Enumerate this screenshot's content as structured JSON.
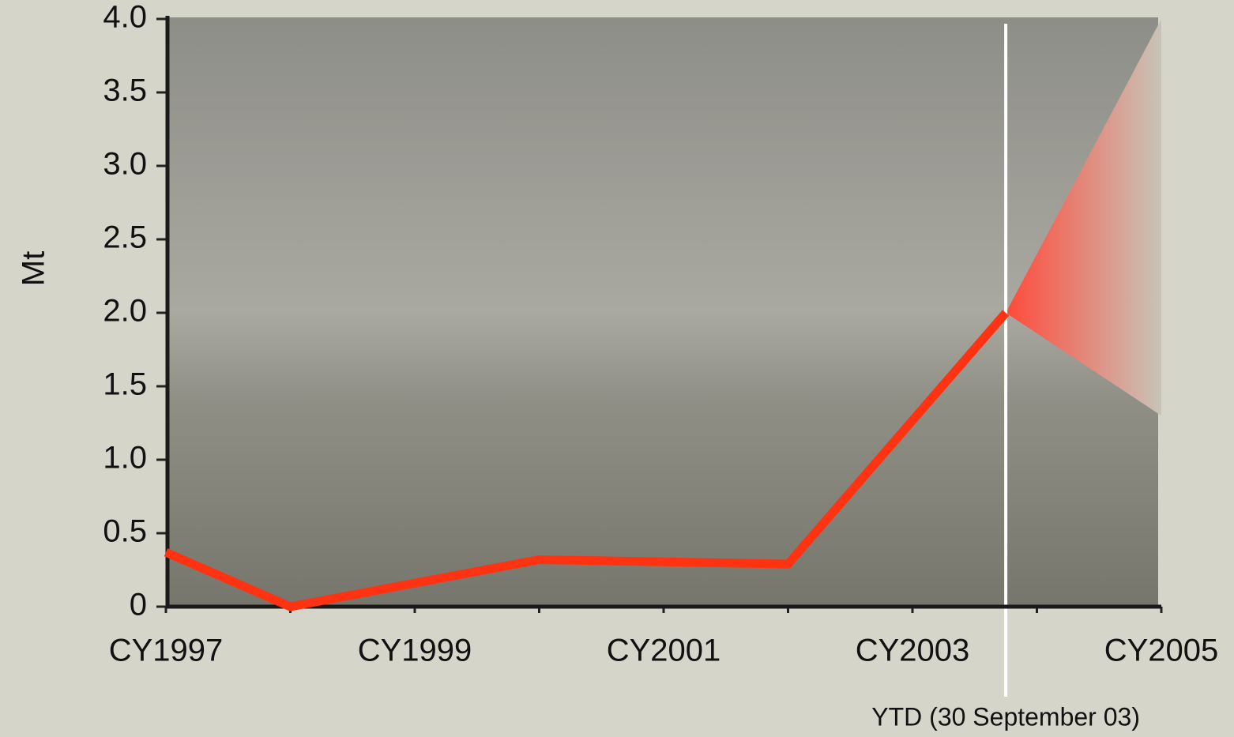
{
  "chart_data": {
    "type": "line",
    "y_label": "Mt",
    "annotation": "YTD (30 September 03)",
    "annotation_x": 2003.75,
    "x": [
      1997,
      1998,
      2000,
      2002,
      2003.75
    ],
    "series": [
      {
        "name": null,
        "color": "#ff3311",
        "values": [
          0.37,
          0,
          0.32,
          0.29,
          2.0
        ]
      }
    ],
    "forecast_range": {
      "x": [
        2003.75,
        2005
      ],
      "low": [
        2.0,
        1.3
      ],
      "high": [
        2.0,
        4.0
      ],
      "color": "#ff4a3a"
    },
    "xlim": [
      1997,
      2005
    ],
    "xticks": [
      {
        "value": 1997,
        "label": "CY1997"
      },
      {
        "value": 1999,
        "label": "CY1999"
      },
      {
        "value": 2001,
        "label": "CY2001"
      },
      {
        "value": 2003,
        "label": "CY2003"
      },
      {
        "value": 2005,
        "label": "CY2005"
      }
    ],
    "xminor_ticks": [
      1998,
      2000,
      2002,
      2004
    ],
    "ylim": [
      0,
      4.0
    ],
    "yticks": [
      0,
      {
        "value": 0.5,
        "label": "0.5"
      },
      {
        "value": 1.0,
        "label": "1.0"
      },
      {
        "value": 1.5,
        "label": "1.5"
      },
      {
        "value": 2.0,
        "label": "2.0"
      },
      {
        "value": 2.5,
        "label": "2.5"
      },
      {
        "value": 3.0,
        "label": "3.0"
      },
      {
        "value": 3.5,
        "label": "3.5"
      },
      {
        "value": 4.0,
        "label": "4.0"
      }
    ]
  }
}
